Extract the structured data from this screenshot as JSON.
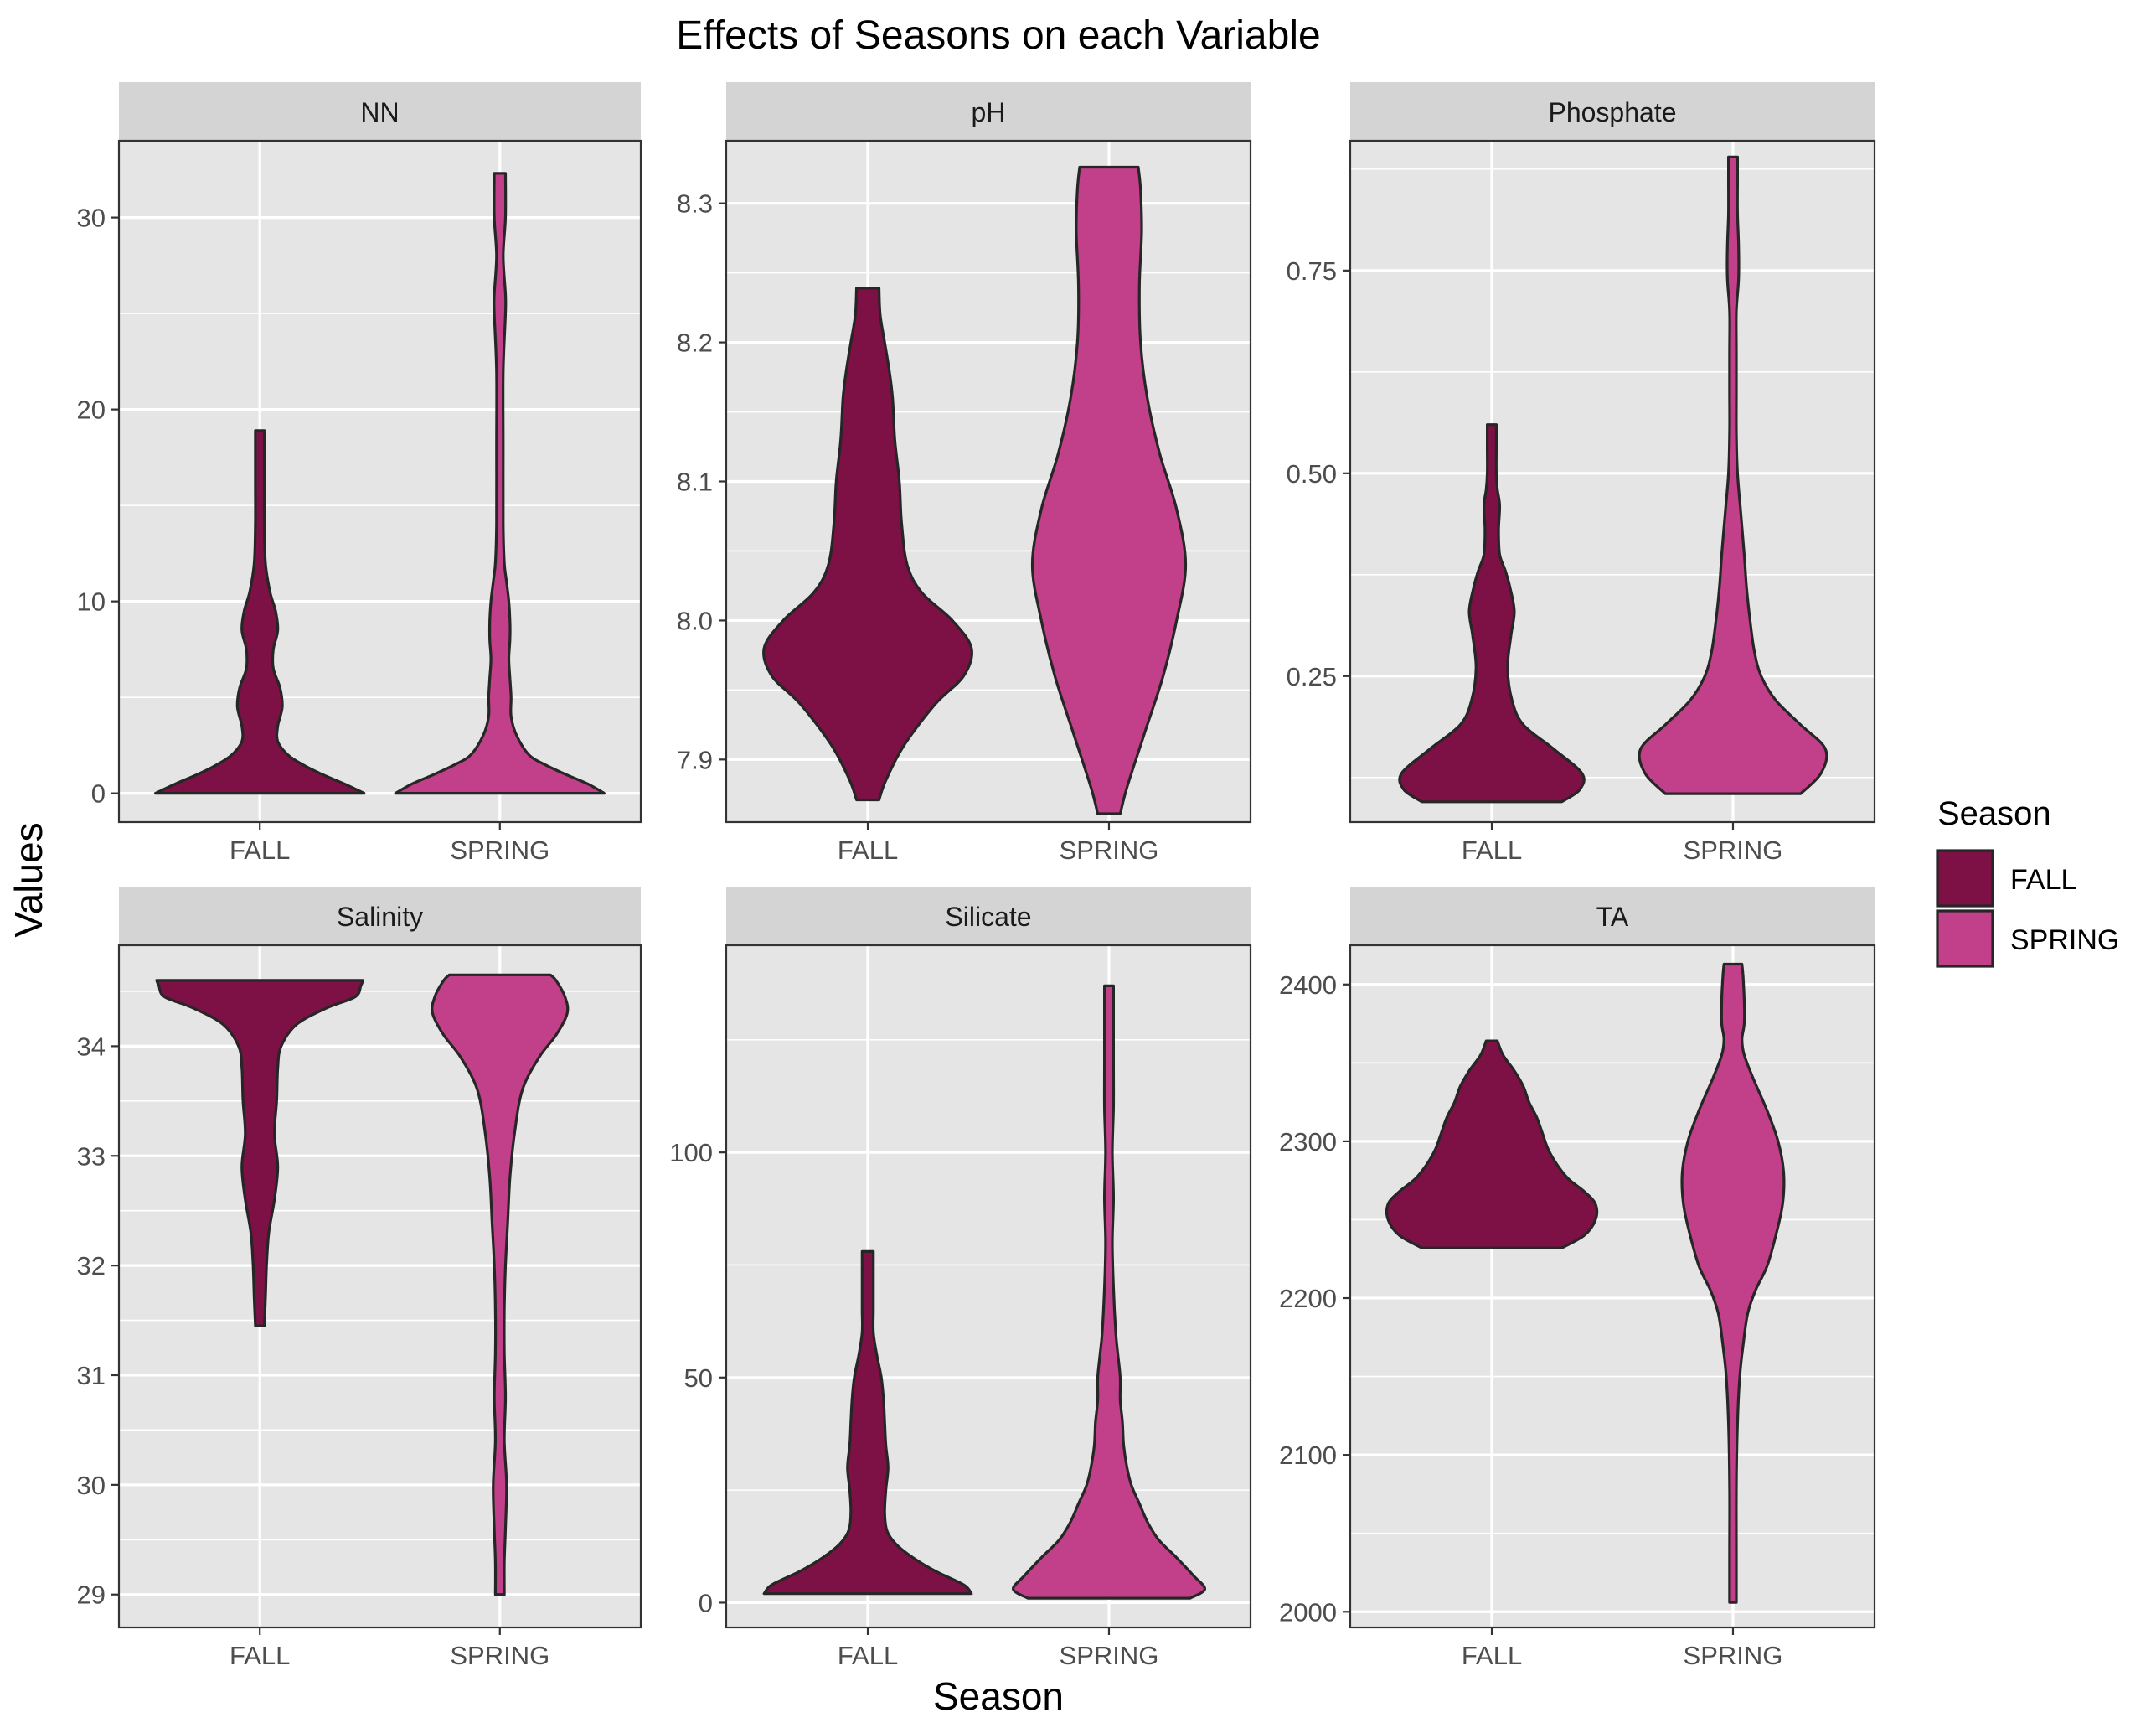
{
  "chart_data": {
    "type": "violin",
    "title": "Effects of Seasons on each Variable",
    "xlabel": "Season",
    "ylabel": "Values",
    "categories": [
      "FALL",
      "SPRING"
    ],
    "legend": {
      "title": "Season",
      "position": "right",
      "items": [
        {
          "label": "FALL",
          "color": "#7d1045"
        },
        {
          "label": "SPRING",
          "color": "#c23f89"
        }
      ]
    },
    "grid": true,
    "colors": {
      "panel_bg": "#e5e5e5",
      "strip_bg": "#d4d4d4",
      "grid": "#ffffff",
      "outline": "#262626"
    },
    "panels": [
      {
        "title": "NN",
        "ylim": [
          -1.5,
          34
        ],
        "yticks": [
          0,
          10,
          20,
          30
        ],
        "yticklabels": [
          "0",
          "10",
          "20",
          "30"
        ],
        "series": [
          {
            "name": "FALL",
            "y": [
              0,
              0.5,
              1.0,
              1.5,
              2.0,
              2.7,
              3.5,
              4.5,
              5.5,
              6.5,
              7.5,
              8.5,
              9.5,
              10.5,
              12.0,
              14.0,
              16.0,
              18.9
            ],
            "width": [
              0.93,
              0.75,
              0.55,
              0.38,
              0.25,
              0.16,
              0.16,
              0.2,
              0.18,
              0.12,
              0.12,
              0.16,
              0.14,
              0.09,
              0.05,
              0.04,
              0.04,
              0.04
            ]
          },
          {
            "name": "SPRING",
            "y": [
              0,
              0.5,
              1.0,
              1.5,
              2.0,
              3.0,
              4.0,
              5.0,
              6.0,
              7.0,
              8.0,
              9.0,
              10.0,
              11.0,
              12.0,
              14.0,
              18.0,
              22.0,
              25.0,
              26.0,
              28.0,
              30.0,
              32.3
            ],
            "width": [
              0.93,
              0.78,
              0.58,
              0.4,
              0.26,
              0.15,
              0.1,
              0.1,
              0.09,
              0.08,
              0.09,
              0.09,
              0.08,
              0.06,
              0.04,
              0.03,
              0.03,
              0.03,
              0.05,
              0.05,
              0.03,
              0.05,
              0.05
            ]
          }
        ]
      },
      {
        "title": "pH",
        "ylim": [
          7.855,
          8.345
        ],
        "yticks": [
          7.9,
          8.0,
          8.1,
          8.2,
          8.3
        ],
        "yticklabels": [
          "7.9",
          "8.0",
          "8.1",
          "8.2",
          "8.3"
        ],
        "series": [
          {
            "name": "FALL",
            "y": [
              7.871,
              7.885,
              7.91,
              7.94,
              7.96,
              7.98,
              8.0,
              8.02,
              8.04,
              8.07,
              8.1,
              8.13,
              8.16,
              8.18,
              8.2,
              8.22,
              8.239
            ],
            "width": [
              0.1,
              0.16,
              0.32,
              0.6,
              0.85,
              0.92,
              0.75,
              0.48,
              0.35,
              0.3,
              0.28,
              0.24,
              0.22,
              0.19,
              0.15,
              0.11,
              0.1
            ]
          },
          {
            "name": "SPRING",
            "y": [
              7.861,
              7.88,
              7.92,
              7.96,
              8.0,
              8.04,
              8.08,
              8.12,
              8.16,
              8.2,
              8.24,
              8.28,
              8.31,
              8.326
            ],
            "width": [
              0.1,
              0.16,
              0.32,
              0.48,
              0.6,
              0.68,
              0.6,
              0.45,
              0.34,
              0.28,
              0.27,
              0.29,
              0.28,
              0.26
            ]
          }
        ]
      },
      {
        "title": "Phosphate",
        "ylim": [
          0.07,
          0.91
        ],
        "yticks": [
          0.25,
          0.5,
          0.75
        ],
        "yticklabels": [
          "0.25",
          "0.50",
          "0.75"
        ],
        "series": [
          {
            "name": "FALL",
            "y": [
              0.095,
              0.11,
              0.13,
              0.16,
              0.19,
              0.22,
              0.26,
              0.3,
              0.33,
              0.36,
              0.38,
              0.4,
              0.43,
              0.46,
              0.48,
              0.5,
              0.53,
              0.56
            ],
            "width": [
              0.62,
              0.78,
              0.8,
              0.55,
              0.28,
              0.18,
              0.14,
              0.17,
              0.2,
              0.16,
              0.12,
              0.07,
              0.06,
              0.07,
              0.05,
              0.04,
              0.04,
              0.04
            ]
          },
          {
            "name": "SPRING",
            "y": [
              0.105,
              0.13,
              0.16,
              0.19,
              0.22,
              0.25,
              0.28,
              0.32,
              0.36,
              0.4,
              0.45,
              0.5,
              0.55,
              0.6,
              0.65,
              0.7,
              0.74,
              0.78,
              0.82,
              0.86,
              0.89
            ],
            "width": [
              0.6,
              0.78,
              0.82,
              0.6,
              0.38,
              0.25,
              0.19,
              0.15,
              0.12,
              0.1,
              0.07,
              0.04,
              0.03,
              0.03,
              0.03,
              0.03,
              0.05,
              0.05,
              0.04,
              0.04,
              0.04
            ]
          }
        ]
      },
      {
        "title": "Salinity",
        "ylim": [
          28.7,
          34.92
        ],
        "yticks": [
          29,
          30,
          31,
          32,
          33,
          34
        ],
        "yticklabels": [
          "29",
          "30",
          "31",
          "32",
          "33",
          "34"
        ],
        "series": [
          {
            "name": "FALL",
            "y": [
              31.45,
              31.7,
              32.0,
              32.3,
              32.6,
              32.9,
              33.2,
              33.5,
              33.8,
              34.0,
              34.2,
              34.35,
              34.45,
              34.55,
              34.6
            ],
            "width": [
              0.04,
              0.05,
              0.06,
              0.08,
              0.13,
              0.16,
              0.13,
              0.15,
              0.16,
              0.19,
              0.33,
              0.6,
              0.85,
              0.9,
              0.92
            ]
          },
          {
            "name": "SPRING",
            "y": [
              29.0,
              29.3,
              29.6,
              30.0,
              30.4,
              30.8,
              31.2,
              31.6,
              32.0,
              32.4,
              32.8,
              33.2,
              33.6,
              33.9,
              34.1,
              34.3,
              34.45,
              34.6,
              34.65
            ],
            "width": [
              0.04,
              0.04,
              0.05,
              0.06,
              0.04,
              0.05,
              0.04,
              0.04,
              0.05,
              0.07,
              0.09,
              0.13,
              0.2,
              0.35,
              0.5,
              0.6,
              0.58,
              0.5,
              0.45
            ]
          }
        ]
      },
      {
        "title": "Silicate",
        "ylim": [
          -5.5,
          146
        ],
        "yticks": [
          0,
          50,
          100
        ],
        "yticklabels": [
          "0",
          "50",
          "100"
        ],
        "series": [
          {
            "name": "FALL",
            "y": [
              2,
              4,
              7,
              10,
              13,
              16,
              20,
              25,
              30,
              35,
              40,
              45,
              50,
              55,
              60,
              65,
              70,
              75,
              78
            ],
            "width": [
              0.92,
              0.85,
              0.6,
              0.4,
              0.25,
              0.17,
              0.15,
              0.16,
              0.18,
              0.16,
              0.15,
              0.14,
              0.12,
              0.08,
              0.05,
              0.05,
              0.05,
              0.05,
              0.05
            ]
          },
          {
            "name": "SPRING",
            "y": [
              1,
              3,
              6,
              10,
              14,
              18,
              22,
              26,
              30,
              35,
              40,
              45,
              50,
              55,
              60,
              70,
              80,
              90,
              100,
              110,
              120,
              130,
              137
            ],
            "width": [
              0.72,
              0.85,
              0.75,
              0.6,
              0.44,
              0.34,
              0.27,
              0.2,
              0.16,
              0.13,
              0.12,
              0.1,
              0.1,
              0.08,
              0.06,
              0.04,
              0.03,
              0.04,
              0.03,
              0.04,
              0.04,
              0.04,
              0.04
            ]
          }
        ]
      },
      {
        "title": "TA",
        "ylim": [
          1990,
          2425
        ],
        "yticks": [
          2000,
          2100,
          2200,
          2300,
          2400
        ],
        "yticklabels": [
          "2000",
          "2100",
          "2200",
          "2300",
          "2400"
        ],
        "series": [
          {
            "name": "FALL",
            "y": [
              2232,
              2240,
              2250,
              2260,
              2268,
              2276,
              2285,
              2295,
              2305,
              2315,
              2325,
              2335,
              2345,
              2355,
              2364
            ],
            "width": [
              0.62,
              0.82,
              0.92,
              0.92,
              0.82,
              0.68,
              0.58,
              0.5,
              0.45,
              0.4,
              0.33,
              0.28,
              0.2,
              0.1,
              0.05
            ]
          },
          {
            "name": "SPRING",
            "y": [
              2006,
              2040,
              2080,
              2120,
              2150,
              2170,
              2190,
              2205,
              2220,
              2240,
              2260,
              2280,
              2300,
              2320,
              2340,
              2355,
              2365,
              2375,
              2390,
              2405,
              2413
            ],
            "width": [
              0.03,
              0.03,
              0.03,
              0.04,
              0.06,
              0.09,
              0.13,
              0.2,
              0.3,
              0.38,
              0.44,
              0.45,
              0.4,
              0.3,
              0.18,
              0.1,
              0.08,
              0.1,
              0.1,
              0.09,
              0.08
            ]
          }
        ]
      }
    ]
  }
}
